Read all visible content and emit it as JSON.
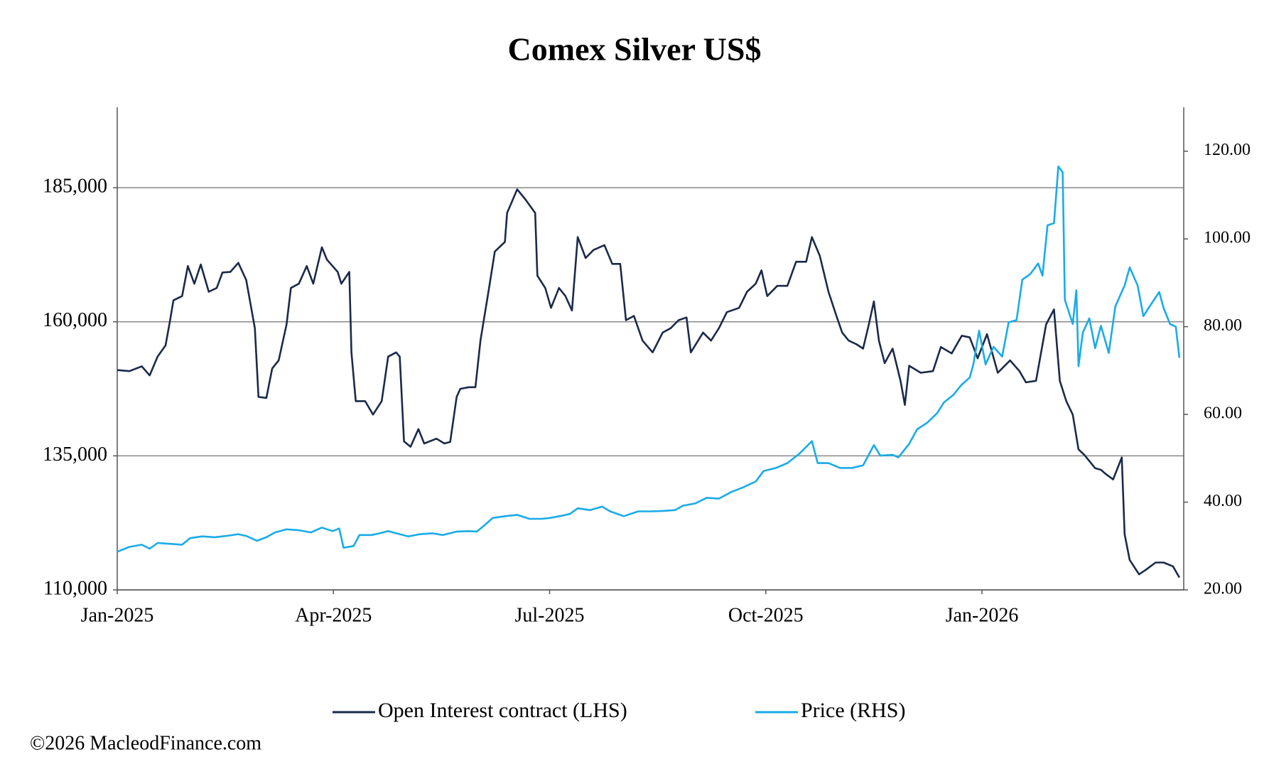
{
  "chart_data": {
    "type": "line",
    "title": "Comex Silver US$",
    "xlim": [
      0,
      14.8
    ],
    "xticks": [
      {
        "value": 0,
        "label": "Jan-2025"
      },
      {
        "value": 3,
        "label": "Apr-2025"
      },
      {
        "value": 6,
        "label": "Jul-2025"
      },
      {
        "value": 9,
        "label": "Oct-2025"
      },
      {
        "value": 12,
        "label": "Jan-2026"
      }
    ],
    "ylim": [
      110000,
      200000
    ],
    "yticks": [
      {
        "value": 110000,
        "label": "110,000"
      },
      {
        "value": 135000,
        "label": "135,000"
      },
      {
        "value": 160000,
        "label": "160,000"
      },
      {
        "value": 185000,
        "label": "185,000"
      }
    ],
    "y2lim": [
      20,
      130
    ],
    "y2ticks": [
      {
        "value": 20,
        "label": "20.00"
      },
      {
        "value": 40,
        "label": "40.00"
      },
      {
        "value": 60,
        "label": "60.00"
      },
      {
        "value": 80,
        "label": "80.00"
      },
      {
        "value": 100,
        "label": "100.00"
      },
      {
        "value": 120,
        "label": "120.00"
      }
    ],
    "grid": true,
    "legend": "bottom",
    "series": [
      {
        "name": "Open Interest contract (LHS)",
        "color": "#1b2a4a",
        "axis": "y",
        "x": [
          0,
          0.17,
          0.34,
          0.45,
          0.56,
          0.67,
          0.73,
          0.78,
          0.9,
          0.98,
          1.07,
          1.16,
          1.27,
          1.38,
          1.46,
          1.57,
          1.68,
          1.79,
          1.91,
          1.96,
          2.07,
          2.15,
          2.24,
          2.35,
          2.41,
          2.52,
          2.63,
          2.72,
          2.84,
          2.91,
          3.06,
          3.11,
          3.22,
          3.25,
          3.31,
          3.44,
          3.55,
          3.67,
          3.76,
          3.87,
          3.92,
          3.98,
          4.07,
          4.18,
          4.26,
          4.43,
          4.54,
          4.62,
          4.71,
          4.76,
          4.88,
          4.97,
          5.04,
          5.16,
          5.24,
          5.38,
          5.41,
          5.55,
          5.66,
          5.8,
          5.83,
          5.94,
          6.02,
          6.13,
          6.22,
          6.31,
          6.39,
          6.5,
          6.61,
          6.76,
          6.87,
          6.98,
          7.06,
          7.17,
          7.29,
          7.43,
          7.57,
          7.68,
          7.79,
          7.9,
          7.96,
          8.13,
          8.24,
          8.35,
          8.46,
          8.63,
          8.74,
          8.86,
          8.94,
          9.02,
          9.16,
          9.3,
          9.42,
          9.56,
          9.64,
          9.75,
          9.87,
          9.98,
          10.06,
          10.15,
          10.26,
          10.35,
          10.43,
          10.5,
          10.57,
          10.65,
          10.76,
          10.87,
          10.93,
          10.99,
          11.15,
          11.32,
          11.43,
          11.58,
          11.72,
          11.83,
          11.94,
          12.07,
          12.22,
          12.39,
          12.52,
          12.61,
          12.75,
          12.89,
          13.0,
          13.08,
          13.17,
          13.26,
          13.34,
          13.42,
          13.57,
          13.65,
          13.71,
          13.82,
          13.94,
          13.98,
          14.05,
          14.18,
          14.27,
          14.41,
          14.52,
          14.65,
          14.74
        ],
        "values": [
          151000,
          150800,
          151700,
          150000,
          153500,
          155600,
          160000,
          164000,
          164800,
          170400,
          167100,
          170700,
          165600,
          166300,
          169200,
          169300,
          171000,
          167800,
          158800,
          146000,
          145800,
          151300,
          152800,
          159500,
          166300,
          167100,
          170400,
          167100,
          173900,
          171600,
          169300,
          167100,
          169300,
          154300,
          145200,
          145200,
          142700,
          145200,
          153500,
          154300,
          153500,
          137700,
          136700,
          140000,
          137300,
          138200,
          137300,
          137600,
          146000,
          147500,
          147800,
          147800,
          156500,
          166300,
          173100,
          174900,
          180300,
          184700,
          182900,
          180300,
          168600,
          166300,
          162600,
          166300,
          164800,
          162100,
          175800,
          171900,
          173400,
          174300,
          170800,
          170800,
          160300,
          161100,
          156500,
          154300,
          158000,
          158800,
          160300,
          160800,
          154300,
          158000,
          156500,
          158800,
          161800,
          162600,
          165600,
          167100,
          169600,
          164800,
          166700,
          166700,
          171200,
          171200,
          175800,
          172300,
          165600,
          161100,
          158000,
          156500,
          155800,
          155000,
          159500,
          163800,
          156500,
          152300,
          155000,
          149000,
          144500,
          151800,
          150500,
          150800,
          155300,
          154100,
          157400,
          157100,
          153200,
          157700,
          150500,
          152800,
          150800,
          148700,
          149000,
          159500,
          162300,
          149000,
          145200,
          142700,
          136200,
          135200,
          132700,
          132400,
          131700,
          130600,
          134700,
          120400,
          115600,
          112900,
          113700,
          115100,
          115100,
          114400,
          112300
        ]
      },
      {
        "name": "Price (RHS)",
        "color": "#1aabe8",
        "axis": "y2",
        "x": [
          0,
          0.17,
          0.34,
          0.45,
          0.56,
          0.73,
          0.9,
          1.01,
          1.18,
          1.35,
          1.51,
          1.68,
          1.79,
          1.94,
          2.07,
          2.19,
          2.35,
          2.52,
          2.69,
          2.84,
          2.99,
          3.08,
          3.14,
          3.28,
          3.36,
          3.53,
          3.64,
          3.76,
          3.92,
          4.04,
          4.2,
          4.37,
          4.52,
          4.71,
          4.88,
          4.99,
          5.08,
          5.21,
          5.38,
          5.55,
          5.72,
          5.89,
          6.0,
          6.17,
          6.28,
          6.39,
          6.56,
          6.73,
          6.84,
          7.03,
          7.23,
          7.4,
          7.57,
          7.74,
          7.85,
          8.02,
          8.18,
          8.35,
          8.52,
          8.69,
          8.86,
          8.97,
          9.14,
          9.3,
          9.47,
          9.64,
          9.72,
          9.87,
          10.03,
          10.2,
          10.35,
          10.5,
          10.59,
          10.76,
          10.84,
          10.99,
          11.1,
          11.24,
          11.38,
          11.47,
          11.6,
          11.72,
          11.83,
          11.88,
          11.96,
          12.05,
          12.16,
          12.28,
          12.37,
          12.48,
          12.56,
          12.67,
          12.78,
          12.84,
          12.91,
          13.0,
          13.06,
          13.12,
          13.15,
          13.26,
          13.31,
          13.34,
          13.4,
          13.49,
          13.57,
          13.65,
          13.76,
          13.85,
          13.98,
          14.05,
          14.16,
          14.24,
          14.35,
          14.46,
          14.52,
          14.61,
          14.69,
          14.74
        ],
        "values": [
          28.7,
          29.8,
          30.3,
          29.4,
          30.7,
          30.5,
          30.3,
          31.8,
          32.2,
          32.0,
          32.3,
          32.7,
          32.3,
          31.2,
          32.0,
          33.1,
          33.8,
          33.6,
          33.1,
          34.2,
          33.4,
          34.0,
          29.6,
          30.0,
          32.5,
          32.5,
          32.9,
          33.4,
          32.7,
          32.2,
          32.7,
          32.9,
          32.5,
          33.3,
          33.4,
          33.3,
          34.5,
          36.4,
          36.8,
          37.1,
          36.2,
          36.2,
          36.4,
          36.9,
          37.3,
          38.6,
          38.2,
          39.0,
          37.9,
          36.8,
          37.9,
          37.9,
          38.0,
          38.2,
          39.2,
          39.7,
          41.0,
          40.8,
          42.3,
          43.4,
          44.7,
          47.1,
          47.8,
          48.9,
          51.1,
          53.9,
          48.9,
          48.9,
          47.8,
          47.8,
          48.4,
          53.0,
          50.6,
          50.8,
          50.2,
          53.3,
          56.6,
          58.1,
          60.3,
          62.7,
          64.4,
          66.8,
          68.4,
          71.4,
          79.1,
          71.4,
          75.4,
          73.2,
          81.0,
          81.5,
          90.7,
          92.0,
          94.4,
          91.6,
          103.1,
          103.6,
          116.5,
          115.2,
          86.1,
          80.6,
          88.3,
          71.0,
          78.7,
          81.9,
          75.1,
          80.2,
          74.0,
          84.6,
          89.4,
          93.5,
          89.4,
          82.4,
          85.2,
          87.9,
          84.3,
          80.6,
          80.0,
          72.9
        ]
      }
    ],
    "footer": "©2026 MacleodFinance.com"
  }
}
